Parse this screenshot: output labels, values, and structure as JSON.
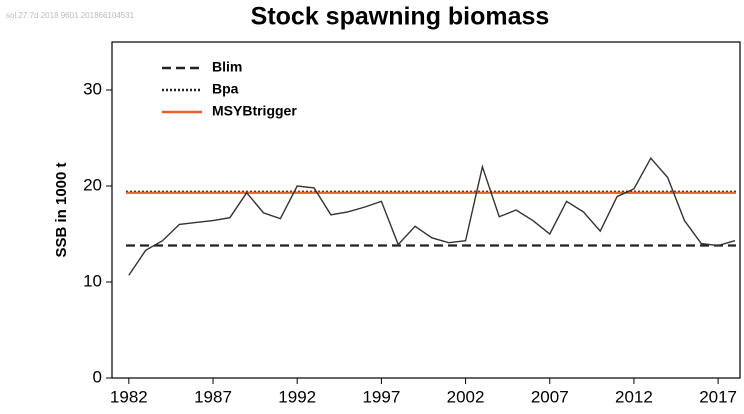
{
  "chart_data": {
    "type": "line",
    "watermark": "sol.27.7d 2018 9601 201866104531",
    "title": "Stock spawning biomass",
    "y_label": "SSB in 1000 t",
    "x": [
      1982,
      1983,
      1984,
      1985,
      1986,
      1987,
      1988,
      1989,
      1990,
      1991,
      1992,
      1993,
      1994,
      1995,
      1996,
      1997,
      1998,
      1999,
      2000,
      2001,
      2002,
      2003,
      2004,
      2005,
      2006,
      2007,
      2008,
      2009,
      2010,
      2011,
      2012,
      2013,
      2014,
      2015,
      2016,
      2017,
      2018
    ],
    "series": [
      {
        "name": "SSB",
        "color": "#333333",
        "values": [
          10.7,
          13.3,
          14.3,
          16.0,
          16.2,
          16.4,
          16.7,
          19.3,
          17.2,
          16.6,
          20.0,
          19.8,
          17.0,
          17.3,
          17.8,
          18.4,
          13.9,
          15.8,
          14.6,
          14.1,
          14.3,
          22.0,
          16.8,
          17.5,
          16.4,
          15.0,
          18.4,
          17.3,
          15.3,
          18.9,
          19.7,
          22.9,
          20.9,
          16.4,
          14.0,
          13.8,
          14.3
        ]
      }
    ],
    "reference_lines": [
      {
        "name": "Blim",
        "value": 13.8,
        "color": "#222222",
        "style": "dashed"
      },
      {
        "name": "Bpa",
        "value": 19.4,
        "color": "#222222",
        "style": "dotted"
      },
      {
        "name": "MSYBtrigger",
        "value": 19.3,
        "color": "#e8602c",
        "style": "solid"
      }
    ],
    "xlim": [
      1981,
      2018.3
    ],
    "ylim": [
      0,
      35
    ],
    "xticks": [
      1982,
      1987,
      1992,
      1997,
      2002,
      2007,
      2012,
      2017
    ],
    "yticks": [
      0,
      10,
      20,
      30
    ]
  }
}
